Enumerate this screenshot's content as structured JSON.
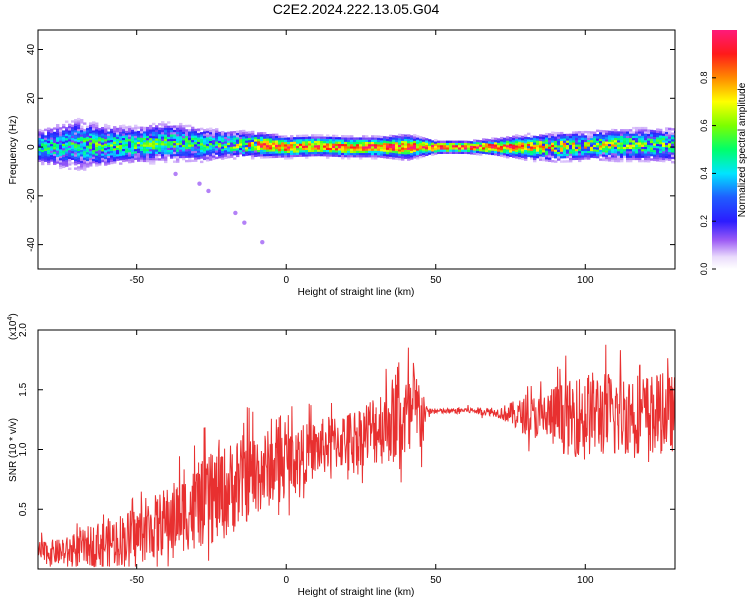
{
  "title": "C2E2.2024.222.13.05.G04",
  "chart_data": [
    {
      "type": "heatmap",
      "xlabel": "Height of straight line (km)",
      "ylabel": "Frequency (Hz)",
      "xlim": [
        -83,
        130
      ],
      "ylim": [
        -50,
        48
      ],
      "xticks": [
        -50,
        0,
        50,
        100
      ],
      "yticks": [
        -40,
        -20,
        0,
        20,
        40
      ],
      "colorbar": {
        "label": "Normalized spectral amplitude",
        "range": [
          0,
          1
        ],
        "ticks": [
          "0.0",
          "0.2",
          "0.4",
          "0.6",
          "0.8"
        ],
        "colormap": "rainbow (violet→blue→cyan→green→yellow→red→magenta)"
      },
      "ridge": {
        "x": [
          -83,
          -70,
          -60,
          -50,
          -40,
          -30,
          -20,
          -10,
          0,
          10,
          20,
          30,
          40,
          50,
          60,
          70,
          80,
          90,
          100,
          110,
          120,
          130
        ],
        "frequency_hz": [
          0,
          1,
          0.5,
          1,
          2,
          1,
          1,
          1,
          0,
          0.5,
          0,
          0,
          0,
          0,
          0,
          0,
          0,
          0,
          0.5,
          1,
          1,
          1
        ],
        "peak_amplitude": [
          0.5,
          0.55,
          0.6,
          0.6,
          0.6,
          0.55,
          0.6,
          0.9,
          0.95,
          0.9,
          0.9,
          0.95,
          0.95,
          1,
          1,
          1,
          0.85,
          0.8,
          0.75,
          0.7,
          0.65,
          0.6
        ],
        "spread_hz": [
          8,
          12,
          9,
          8,
          9,
          8,
          6,
          5,
          4,
          4,
          4,
          4,
          5,
          2,
          2,
          3,
          5,
          6,
          6,
          7,
          7,
          8
        ]
      },
      "scattered_points": [
        {
          "x": -37,
          "frequency_hz": -11
        },
        {
          "x": -29,
          "frequency_hz": -15
        },
        {
          "x": -26,
          "frequency_hz": -18
        },
        {
          "x": -17,
          "frequency_hz": -27
        },
        {
          "x": -14,
          "frequency_hz": -31
        },
        {
          "x": -8,
          "frequency_hz": -39
        }
      ]
    },
    {
      "type": "line",
      "xlabel": "Height of straight line (km)",
      "ylabel": "SNR (10 * v/v)",
      "y_multiplier_label": "(x10",
      "y_multiplier_exponent": "4",
      "y_multiplier_close": ")",
      "xlim": [
        -83,
        130
      ],
      "ylim": [
        0,
        2.0
      ],
      "xticks": [
        -50,
        0,
        50,
        100
      ],
      "yticks": [
        "0.5",
        "1.0",
        "1.5",
        "2.0"
      ],
      "color": "#e83030",
      "envelope": {
        "x": [
          -83,
          -75,
          -70,
          -65,
          -60,
          -55,
          -50,
          -45,
          -40,
          -35,
          -30,
          -25,
          -20,
          -15,
          -10,
          -5,
          0,
          5,
          10,
          15,
          20,
          25,
          30,
          35,
          40,
          45,
          47,
          50,
          55,
          60,
          65,
          70,
          75,
          80,
          85,
          90,
          95,
          100,
          105,
          110,
          115,
          120,
          125,
          130
        ],
        "mean": [
          0.14,
          0.14,
          0.16,
          0.2,
          0.22,
          0.25,
          0.28,
          0.34,
          0.4,
          0.46,
          0.52,
          0.58,
          0.65,
          0.74,
          0.8,
          0.85,
          0.92,
          0.95,
          1.0,
          1.05,
          1.08,
          1.12,
          1.18,
          1.25,
          1.25,
          1.3,
          1.32,
          1.32,
          1.32,
          1.33,
          1.32,
          1.31,
          1.3,
          1.28,
          1.27,
          1.28,
          1.26,
          1.3,
          1.3,
          1.28,
          1.32,
          1.3,
          1.3,
          1.3
        ],
        "spread": [
          0.12,
          0.14,
          0.18,
          0.22,
          0.25,
          0.28,
          0.3,
          0.33,
          0.36,
          0.4,
          0.44,
          0.48,
          0.5,
          0.48,
          0.45,
          0.4,
          0.35,
          0.32,
          0.3,
          0.3,
          0.3,
          0.32,
          0.4,
          0.45,
          0.5,
          0.45,
          0.04,
          0.03,
          0.03,
          0.03,
          0.04,
          0.04,
          0.12,
          0.2,
          0.25,
          0.35,
          0.4,
          0.45,
          0.45,
          0.45,
          0.45,
          0.42,
          0.42,
          0.4
        ]
      }
    }
  ]
}
